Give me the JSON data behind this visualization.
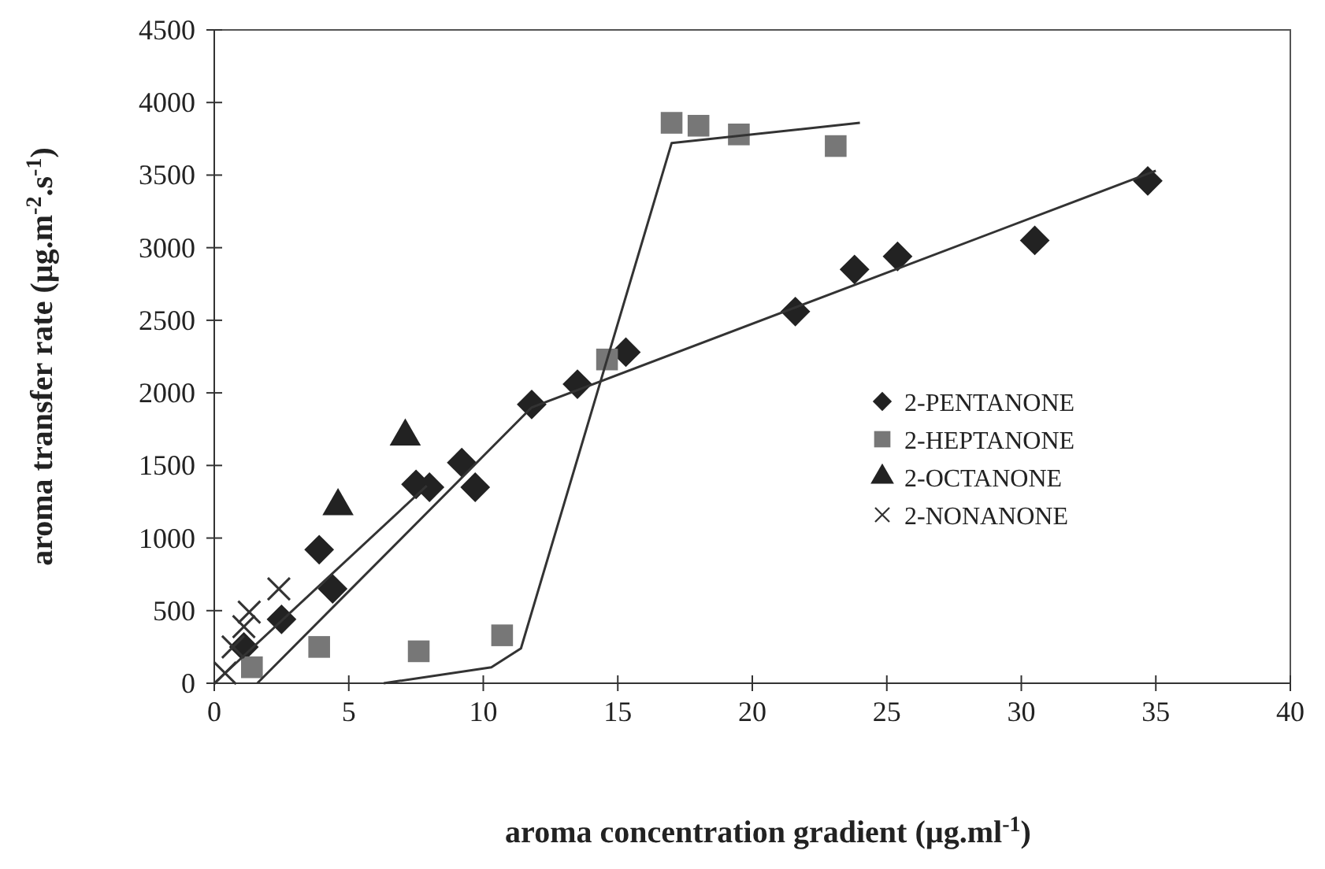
{
  "chart_data": {
    "type": "scatter",
    "xlabel": "aroma concentration gradient (µg.ml$^{-1}$)",
    "ylabel": "aroma transfer rate (µg.m$^{-2}$.s$^{-1}$)",
    "xlim": [
      0,
      40
    ],
    "xticks": [
      0,
      5,
      10,
      15,
      20,
      25,
      30,
      35,
      40
    ],
    "ylim": [
      0,
      4500
    ],
    "yticks": [
      0,
      500,
      1000,
      1500,
      2000,
      2500,
      3000,
      3500,
      4000,
      4500
    ],
    "grid": false,
    "legend": "right",
    "series": [
      {
        "name": "2-PENTANONE",
        "marker": "diamond",
        "color": "#222222",
        "x": [
          1.1,
          2.5,
          3.9,
          4.4,
          7.5,
          8.0,
          9.2,
          9.7,
          11.8,
          13.5,
          15.3,
          21.6,
          23.8,
          25.4,
          30.5,
          34.7
        ],
        "values": [
          250,
          440,
          920,
          650,
          1370,
          1350,
          1520,
          1350,
          1920,
          2060,
          2280,
          2560,
          2850,
          2940,
          3050,
          3460
        ]
      },
      {
        "name": "2-HEPTANONE",
        "marker": "square",
        "color": "#777777",
        "x": [
          1.4,
          3.9,
          7.6,
          10.7,
          14.6,
          17.0,
          18.0,
          19.5,
          23.1
        ],
        "values": [
          110,
          250,
          220,
          330,
          2230,
          3860,
          3840,
          3780,
          3700
        ]
      },
      {
        "name": "2-OCTANONE",
        "marker": "triangle",
        "color": "#222222",
        "x": [
          4.6,
          7.1
        ],
        "values": [
          1220,
          1700
        ]
      },
      {
        "name": "2-NONANONE",
        "marker": "cross",
        "color": "#333333",
        "x": [
          0.4,
          0.7,
          1.1,
          1.3,
          2.4
        ],
        "values": [
          70,
          250,
          390,
          490,
          650
        ]
      },
      {
        "type": "line",
        "color": "#333333",
        "x": [
          1.6,
          11.8,
          35.0
        ],
        "values": [
          0,
          1900,
          3530
        ]
      },
      {
        "type": "line",
        "color": "#333333",
        "x": [
          6.3,
          10.3,
          11.4,
          17.0,
          24.0
        ],
        "values": [
          0,
          110,
          240,
          3720,
          3860
        ]
      },
      {
        "type": "line",
        "color": "#333333",
        "x": [
          0,
          7.9
        ],
        "values": [
          0,
          1360
        ]
      }
    ]
  }
}
